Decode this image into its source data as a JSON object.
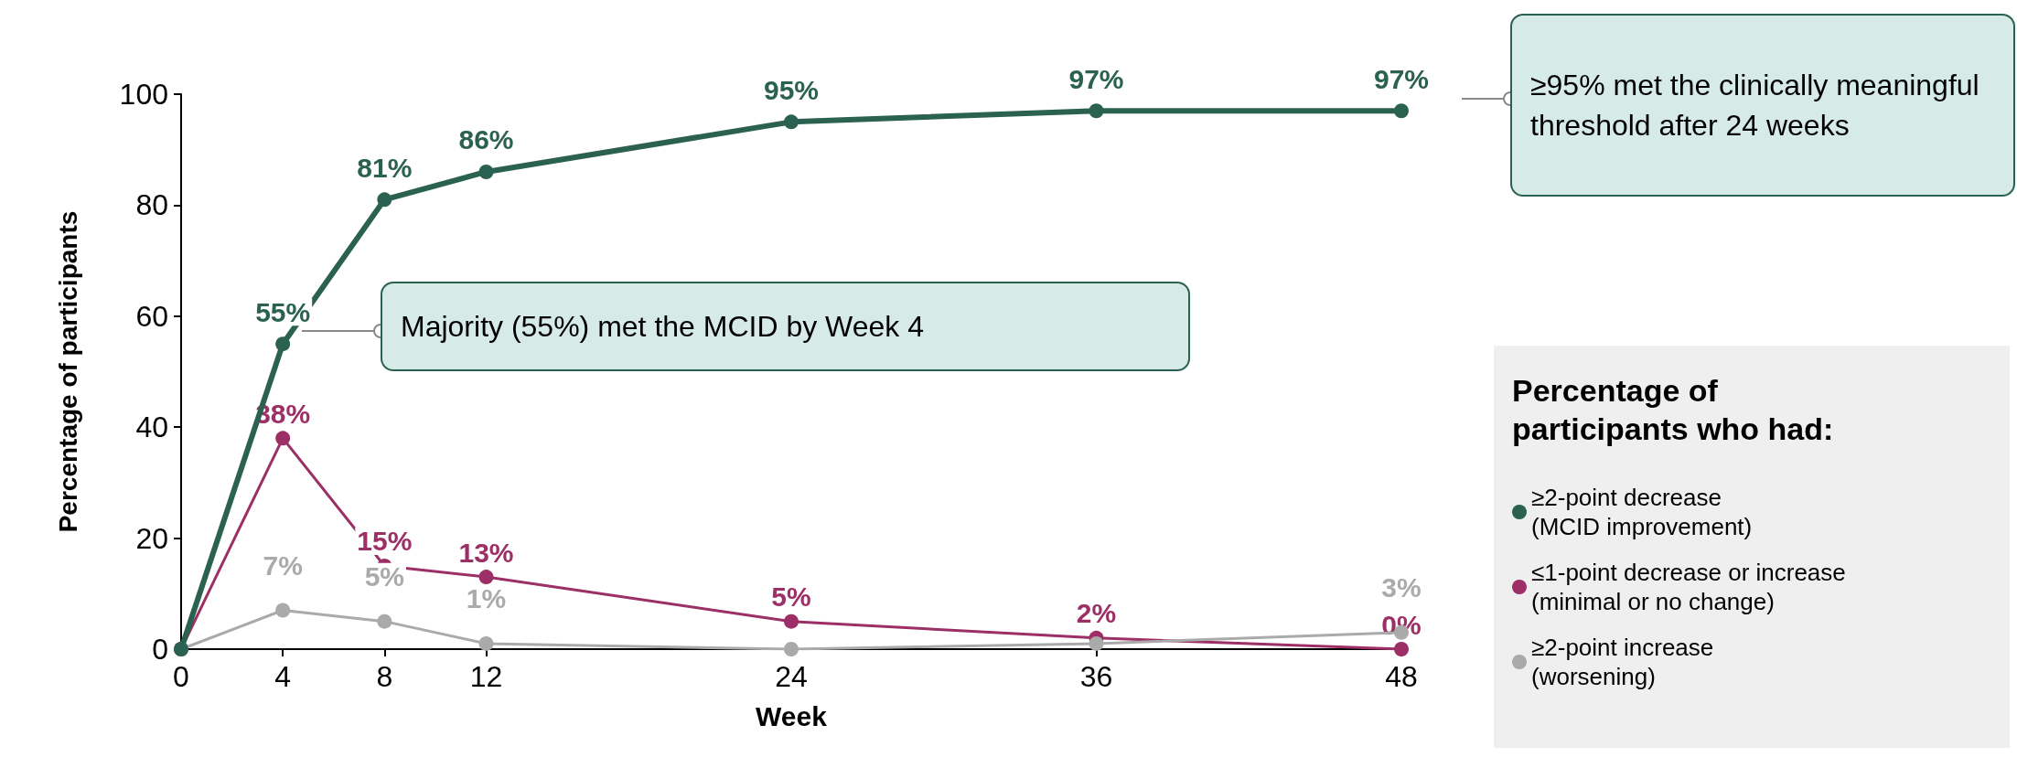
{
  "chart_data": {
    "type": "line",
    "xlabel": "Week",
    "ylabel": "Percentage of participants",
    "legend_title": "Percentage of participants who had:",
    "x": [
      0,
      4,
      8,
      12,
      24,
      36,
      48
    ],
    "xlim": [
      0,
      48
    ],
    "xticks": [
      0,
      4,
      8,
      12,
      24,
      36,
      48
    ],
    "ylim": [
      0,
      100
    ],
    "yticks": [
      0,
      20,
      40,
      60,
      80,
      100
    ],
    "grid": false,
    "legend": "right",
    "marker": "circle",
    "line_style": "solid",
    "series": [
      {
        "name": "≥2-point decrease\n(MCID improvement)",
        "color": "#2b6150",
        "values": [
          0,
          55,
          81,
          86,
          95,
          97,
          97
        ],
        "value_labels": [
          null,
          "55%",
          "81%",
          "86%",
          "95%",
          "97%",
          "97%"
        ]
      },
      {
        "name": "≤1-point decrease or increase\n(minimal or no change)",
        "color": "#9c2f66",
        "values": [
          0,
          38,
          15,
          13,
          5,
          2,
          0
        ],
        "value_labels": [
          null,
          "38%",
          "15%",
          "13%",
          "5%",
          "2%",
          "0%"
        ]
      },
      {
        "name": "≥2-point increase\n(worsening)",
        "color": "#aaaaaa",
        "values": [
          0,
          7,
          5,
          1,
          0,
          1,
          3
        ],
        "value_labels": [
          null,
          "7%",
          "5%",
          "1%",
          null,
          null,
          "3%"
        ]
      }
    ],
    "annotations": [
      "Majority (55%) met the MCID by Week 4",
      "≥95% met the clinically meaningful threshold after 24 weeks"
    ]
  }
}
